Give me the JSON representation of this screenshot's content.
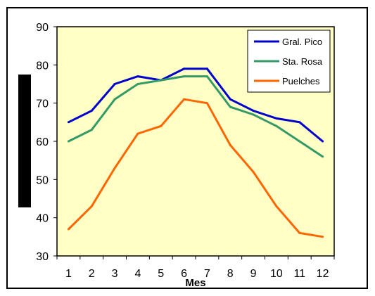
{
  "chart_data": {
    "type": "line",
    "title": "",
    "xlabel": "Mes",
    "ylabel": "",
    "x": [
      1,
      2,
      3,
      4,
      5,
      6,
      7,
      8,
      9,
      10,
      11,
      12
    ],
    "xlim": [
      0.5,
      12.5
    ],
    "ylim": [
      30,
      90
    ],
    "yticks": [
      30,
      40,
      50,
      60,
      70,
      80,
      90
    ],
    "grid": false,
    "legend_position": "top-right",
    "plot_background": "#ffffc6",
    "series": [
      {
        "name": "Gral. Pico",
        "color": "#0000cc",
        "values": [
          65,
          68,
          75,
          77,
          76,
          79,
          79,
          71,
          68,
          66,
          65,
          60
        ]
      },
      {
        "name": "Sta. Rosa",
        "color": "#339966",
        "values": [
          60,
          63,
          71,
          75,
          76,
          77,
          77,
          69,
          67,
          64,
          60,
          56
        ]
      },
      {
        "name": "Puelches",
        "color": "#ff6600",
        "values": [
          37,
          43,
          53,
          62,
          64,
          71,
          70,
          59,
          52,
          43,
          36,
          35
        ]
      }
    ]
  }
}
